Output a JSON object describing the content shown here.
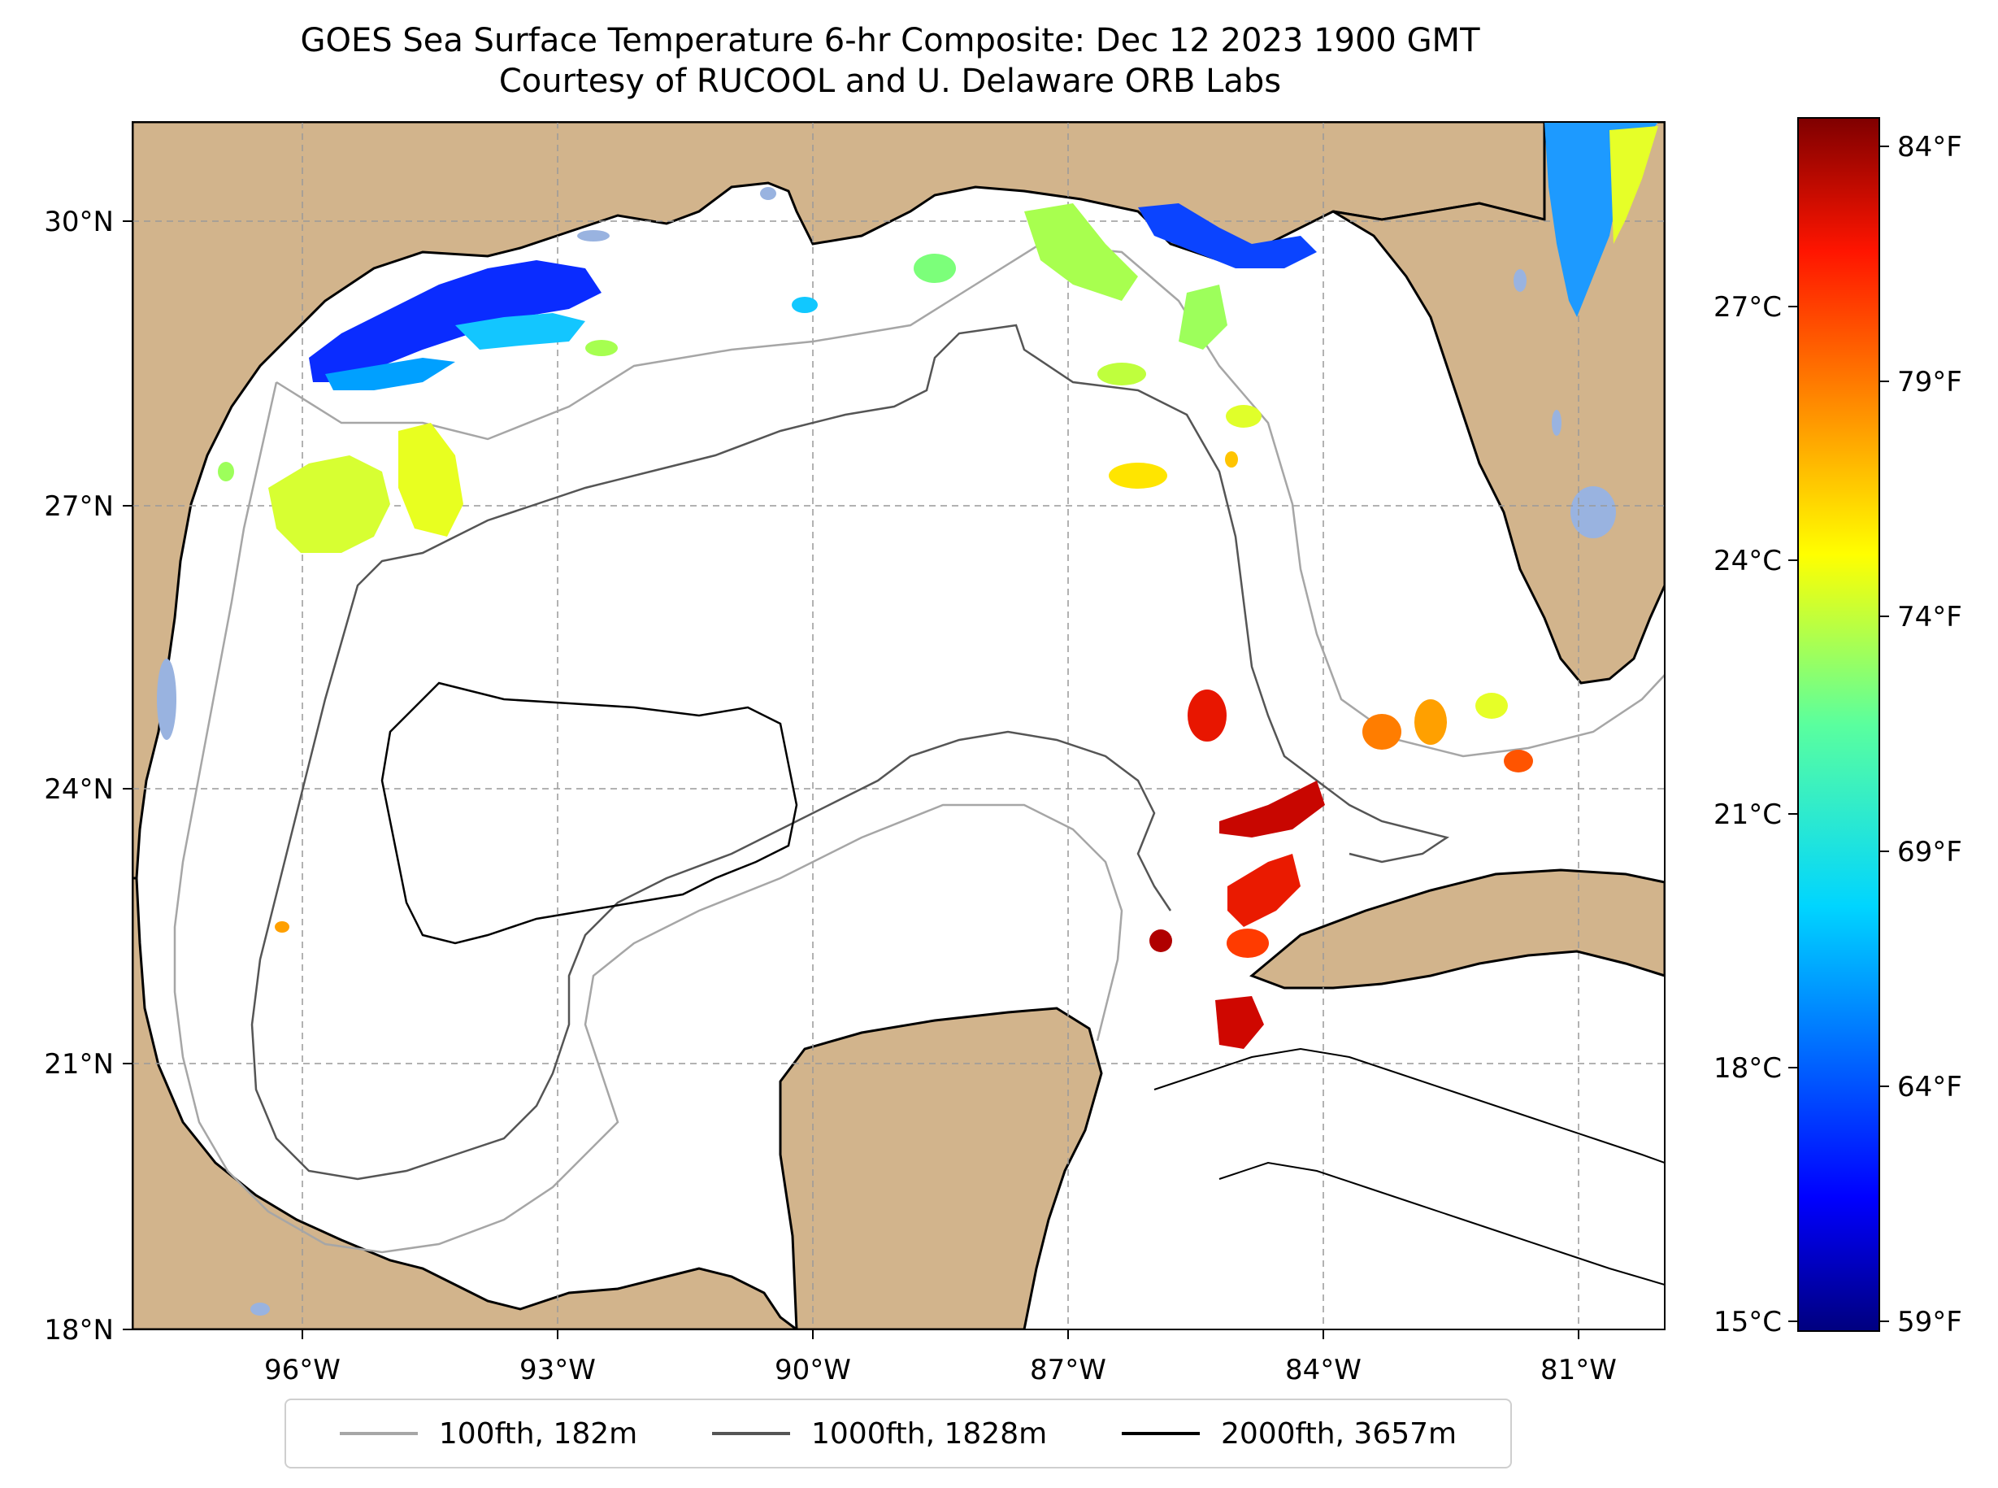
{
  "title": {
    "line1": "GOES Sea Surface Temperature 6-hr Composite: Dec 12 2023 1900 GMT",
    "line2": "Courtesy of RUCOOL and U. Delaware ORB Labs"
  },
  "map": {
    "lon_range": [
      -98,
      -80
    ],
    "lat_range": [
      18,
      31
    ],
    "lon_ticks": [
      "96°W",
      "93°W",
      "90°W",
      "87°W",
      "84°W",
      "81°W"
    ],
    "lat_ticks": [
      "18°N",
      "21°N",
      "24°N",
      "27°N",
      "30°N"
    ],
    "land_color": "#d2b48c",
    "lake_color": "#99b3e0",
    "grid": true
  },
  "colorbar": {
    "celsius_ticks": [
      "15°C",
      "18°C",
      "21°C",
      "24°C",
      "27°C"
    ],
    "fahrenheit_ticks": [
      "59°F",
      "64°F",
      "69°F",
      "74°F",
      "79°F",
      "84°F"
    ],
    "colormap": "jet"
  },
  "legend": {
    "items": [
      {
        "label": "100fth, 182m",
        "color": "#a6a6a6"
      },
      {
        "label": "1000fth, 1828m",
        "color": "#555555"
      },
      {
        "label": "2000fth, 3657m",
        "color": "#000000"
      }
    ]
  }
}
